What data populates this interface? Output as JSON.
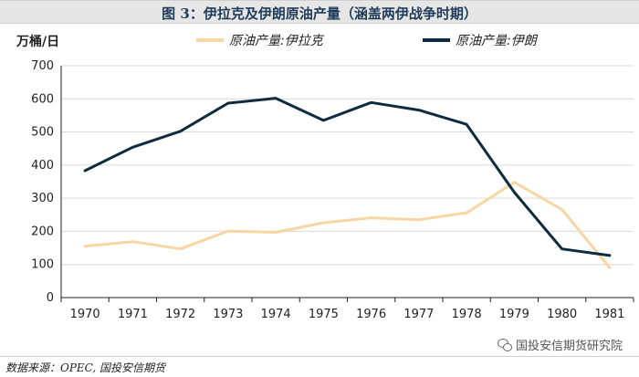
{
  "title": "图 3：伊拉克及伊朗原油产量（涵盖两伊战争时期）",
  "source": "数据来源：OPEC, 国投安信期货",
  "watermark": "国投安信期货研究院",
  "colors": {
    "iraq": "#f7d6a3",
    "iran": "#0e2b40",
    "axis": "#222222",
    "grid": "#d9d9d9"
  },
  "chart_data": {
    "type": "line",
    "ylabel": "万桶/日",
    "categories": [
      "1970",
      "1971",
      "1972",
      "1973",
      "1974",
      "1975",
      "1976",
      "1977",
      "1978",
      "1979",
      "1980",
      "1981"
    ],
    "ylim": [
      0,
      700
    ],
    "yticks": [
      "0",
      "100",
      "200",
      "300",
      "400",
      "500",
      "600",
      "700"
    ],
    "legend_position": "top",
    "series": [
      {
        "name": "原油产量:伊拉克",
        "color": "#f7d6a3",
        "values": [
          155,
          169,
          147,
          201,
          197,
          226,
          241,
          235,
          256,
          348,
          266,
          90
        ]
      },
      {
        "name": "原油产量:伊朗",
        "color": "#0e2b40",
        "values": [
          383,
          454,
          502,
          587,
          602,
          535,
          589,
          566,
          523,
          318,
          147,
          127
        ]
      }
    ]
  }
}
